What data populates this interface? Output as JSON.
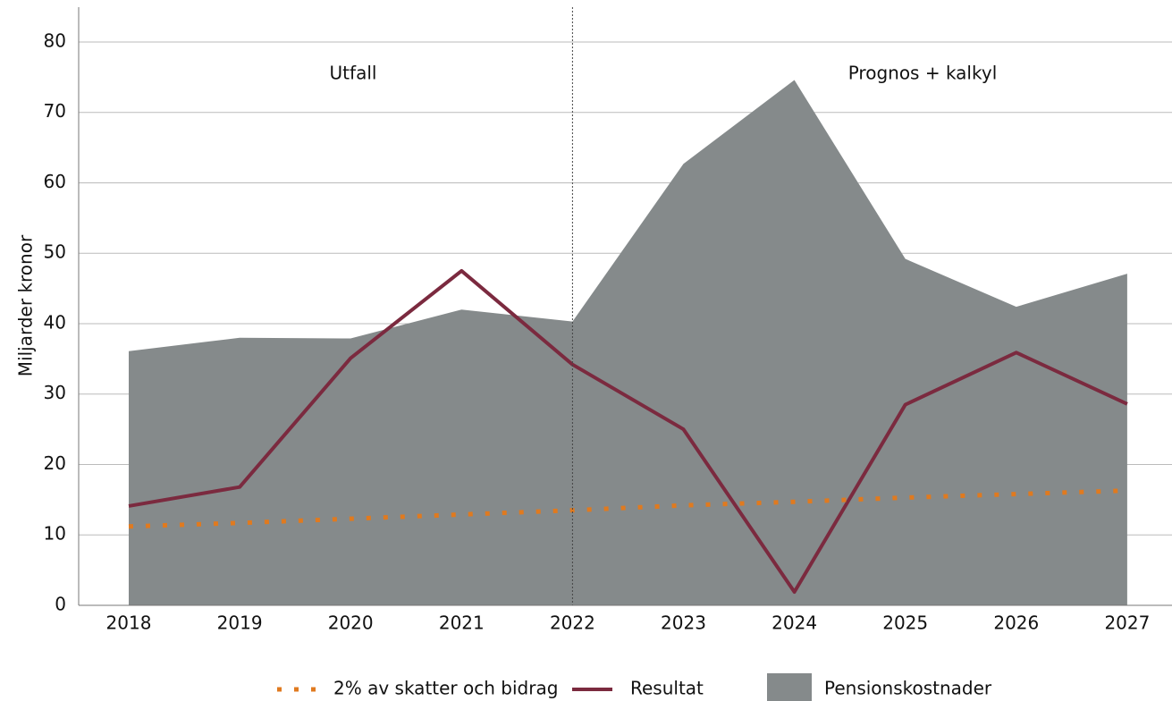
{
  "chart_data": {
    "type": "area-line",
    "ylabel": "Miljarder kronor",
    "annotations": [
      "Utfall",
      "Prognos + kalkyl"
    ],
    "categories": [
      "2018",
      "2019",
      "2020",
      "2021",
      "2022",
      "2023",
      "2024",
      "2025",
      "2026",
      "2027"
    ],
    "series": [
      {
        "name": "Pensionskostnader",
        "style": "area",
        "color": "#858a8b",
        "values": [
          36.1,
          38.0,
          37.9,
          42.0,
          40.3,
          62.7,
          74.6,
          49.2,
          42.4,
          47.1
        ]
      },
      {
        "name": "Resultat",
        "style": "line",
        "color": "#7b2a3f",
        "values": [
          14.1,
          16.8,
          35.1,
          47.5,
          34.2,
          25.0,
          1.9,
          28.5,
          35.9,
          28.6
        ]
      },
      {
        "name": "2% av skatter och bidrag",
        "style": "dotted",
        "color": "#e07a1f",
        "values": [
          11.2,
          11.7,
          12.3,
          12.9,
          13.5,
          14.2,
          14.7,
          15.3,
          15.8,
          16.3
        ]
      }
    ],
    "ylim": [
      0,
      85
    ],
    "yticks": [
      0,
      10,
      20,
      30,
      40,
      50,
      60,
      70,
      80
    ],
    "grid": true
  }
}
